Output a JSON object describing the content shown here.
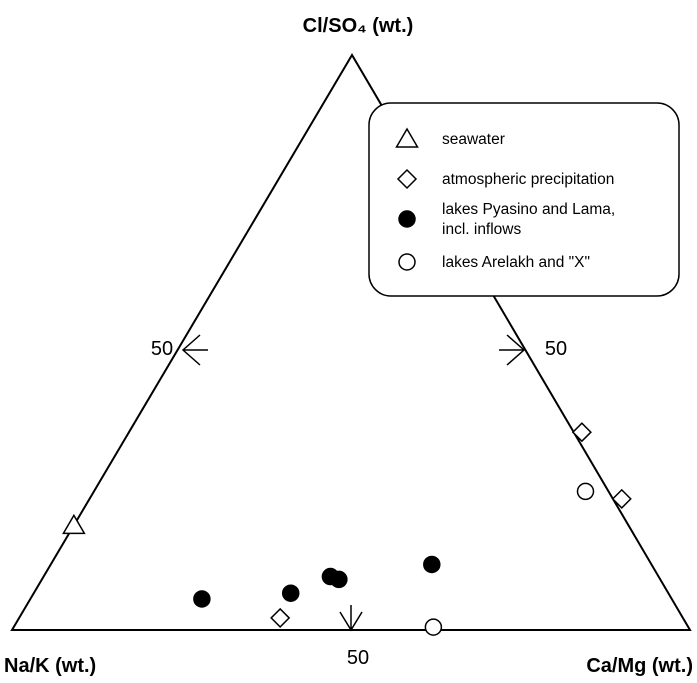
{
  "chart_data": {
    "type": "ternary-scatter",
    "title": "",
    "vertices": {
      "top": "Cl/SO₄ (wt.)",
      "bottom_left": "Na/K (wt.)",
      "bottom_right": "Ca/Mg (wt.)"
    },
    "tick_labels": {
      "left_side": "50",
      "right_side": "50",
      "bottom_side": "50"
    },
    "legend": {
      "placement": "top-right",
      "entries": [
        {
          "marker": "triangle-open",
          "lines": [
            "seawater"
          ]
        },
        {
          "marker": "diamond-open",
          "lines": [
            "atmospheric precipitation"
          ]
        },
        {
          "marker": "circle-filled",
          "lines": [
            "lakes Pyasino and Lama,",
            "incl. inflows"
          ]
        },
        {
          "marker": "circle-open",
          "lines": [
            "lakes Arelakh and \"X\""
          ]
        }
      ]
    },
    "series": [
      {
        "name": "seawater",
        "marker": "triangle-open",
        "points": [
          {
            "top": 18.2,
            "right": 0.0
          }
        ]
      },
      {
        "name": "atmospheric precipitation",
        "marker": "diamond-open",
        "points": [
          {
            "top": 2.1,
            "right": 38.5
          },
          {
            "top": 34.4,
            "right": 66.8
          },
          {
            "top": 22.8,
            "right": 78.5
          }
        ]
      },
      {
        "name": "lakes Pyasino and Lama, incl. inflows",
        "marker": "circle-filled",
        "points": [
          {
            "top": 5.4,
            "right": 25.3
          },
          {
            "top": 6.4,
            "right": 37.9
          },
          {
            "top": 9.3,
            "right": 42.3
          },
          {
            "top": 8.8,
            "right": 43.8
          },
          {
            "top": 11.4,
            "right": 56.2
          }
        ]
      },
      {
        "name": "lakes Arelakh and \"X\"",
        "marker": "circle-open",
        "points": [
          {
            "top": 24.1,
            "right": 72.5
          },
          {
            "top": 0.5,
            "right": 61.9
          }
        ]
      }
    ]
  }
}
